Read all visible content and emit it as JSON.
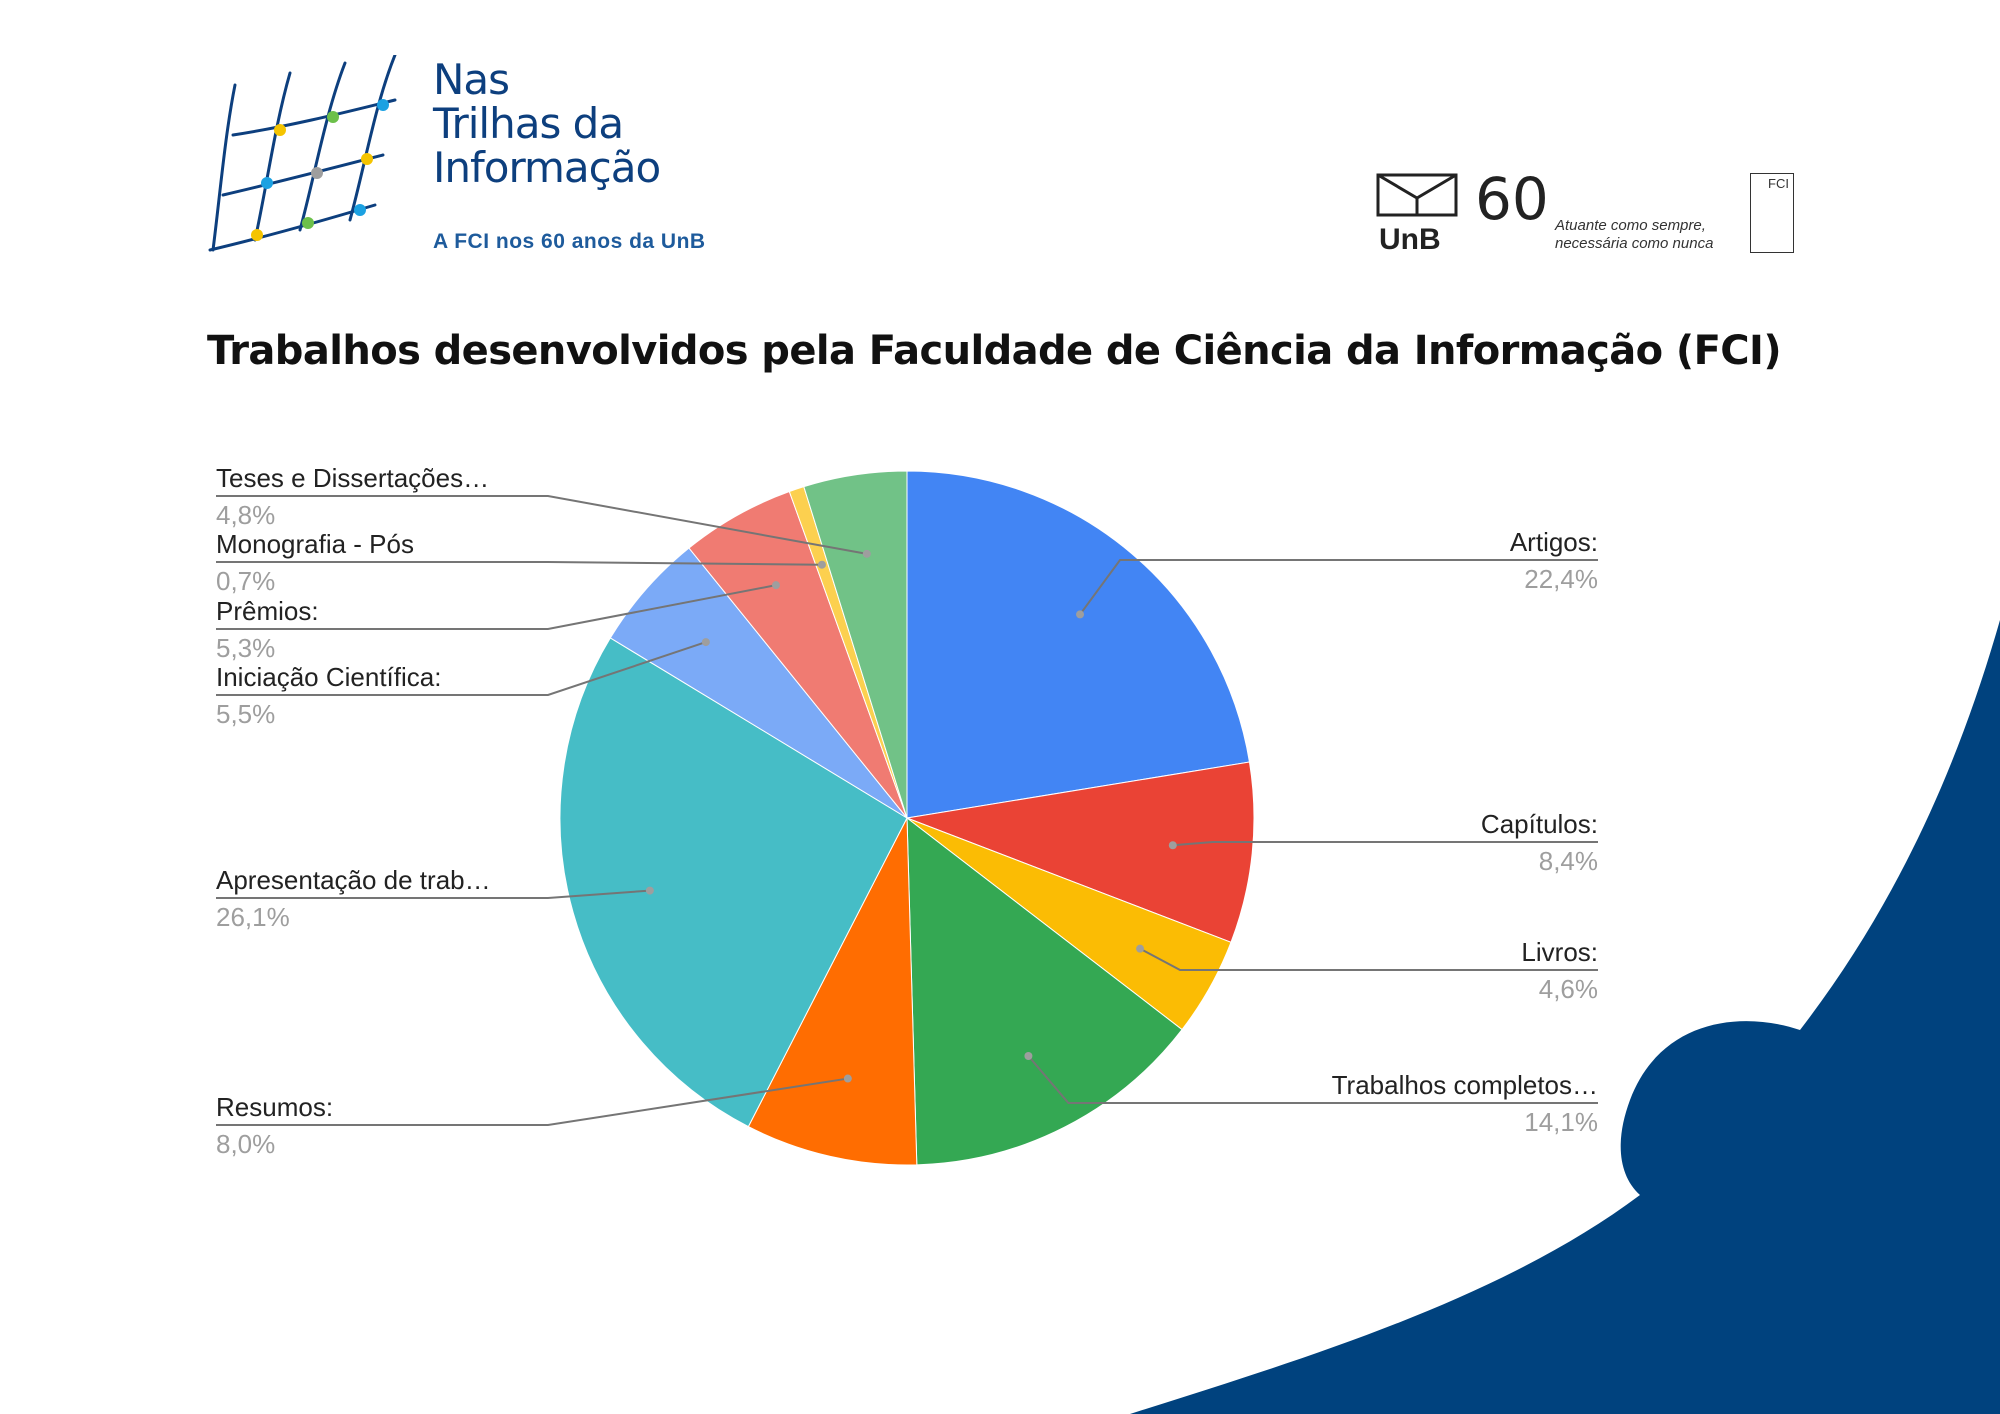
{
  "header": {
    "logo_line1": "Nas",
    "logo_line2": "Trilhas da",
    "logo_line3": "Informação",
    "logo_subtitle": "A FCI nos 60 anos da UnB"
  },
  "partners": {
    "unb": "UnB",
    "sixty": "60",
    "tagline_line1": "Atuante como sempre,",
    "tagline_line2": "necessária como nunca",
    "fci": "FCI"
  },
  "title": "Trabalhos desenvolvidos pela Faculdade de Ciência da Informação (FCI)",
  "colors": {
    "accent_dark_blue": "#00427e"
  },
  "chart_data": {
    "type": "pie",
    "title": "",
    "slices": [
      {
        "label": "Artigos:",
        "pct_label": "22,4%",
        "value": 22.4,
        "color": "#4285f4"
      },
      {
        "label": "Capítulos:",
        "pct_label": "8,4%",
        "value": 8.4,
        "color": "#ea4335"
      },
      {
        "label": "Livros:",
        "pct_label": "4,6%",
        "value": 4.6,
        "color": "#fbbc04"
      },
      {
        "label": "Trabalhos completos…",
        "pct_label": "14,1%",
        "value": 14.1,
        "color": "#34a853"
      },
      {
        "label": "Resumos:",
        "pct_label": "8,0%",
        "value": 8.0,
        "color": "#ff6d01"
      },
      {
        "label": "Apresentação de trab…",
        "pct_label": "26,1%",
        "value": 26.1,
        "color": "#46bdc6"
      },
      {
        "label": "Iniciação Científica:",
        "pct_label": "5,5%",
        "value": 5.5,
        "color": "#7baaf7"
      },
      {
        "label": "Prêmios:",
        "pct_label": "5,3%",
        "value": 5.3,
        "color": "#f07b72"
      },
      {
        "label": "Monografia - Pós",
        "pct_label": "0,7%",
        "value": 0.7,
        "color": "#fcd04f"
      },
      {
        "label": "Teses e Dissertações…",
        "pct_label": "4,8%",
        "value": 4.8,
        "color": "#71c287"
      }
    ]
  }
}
